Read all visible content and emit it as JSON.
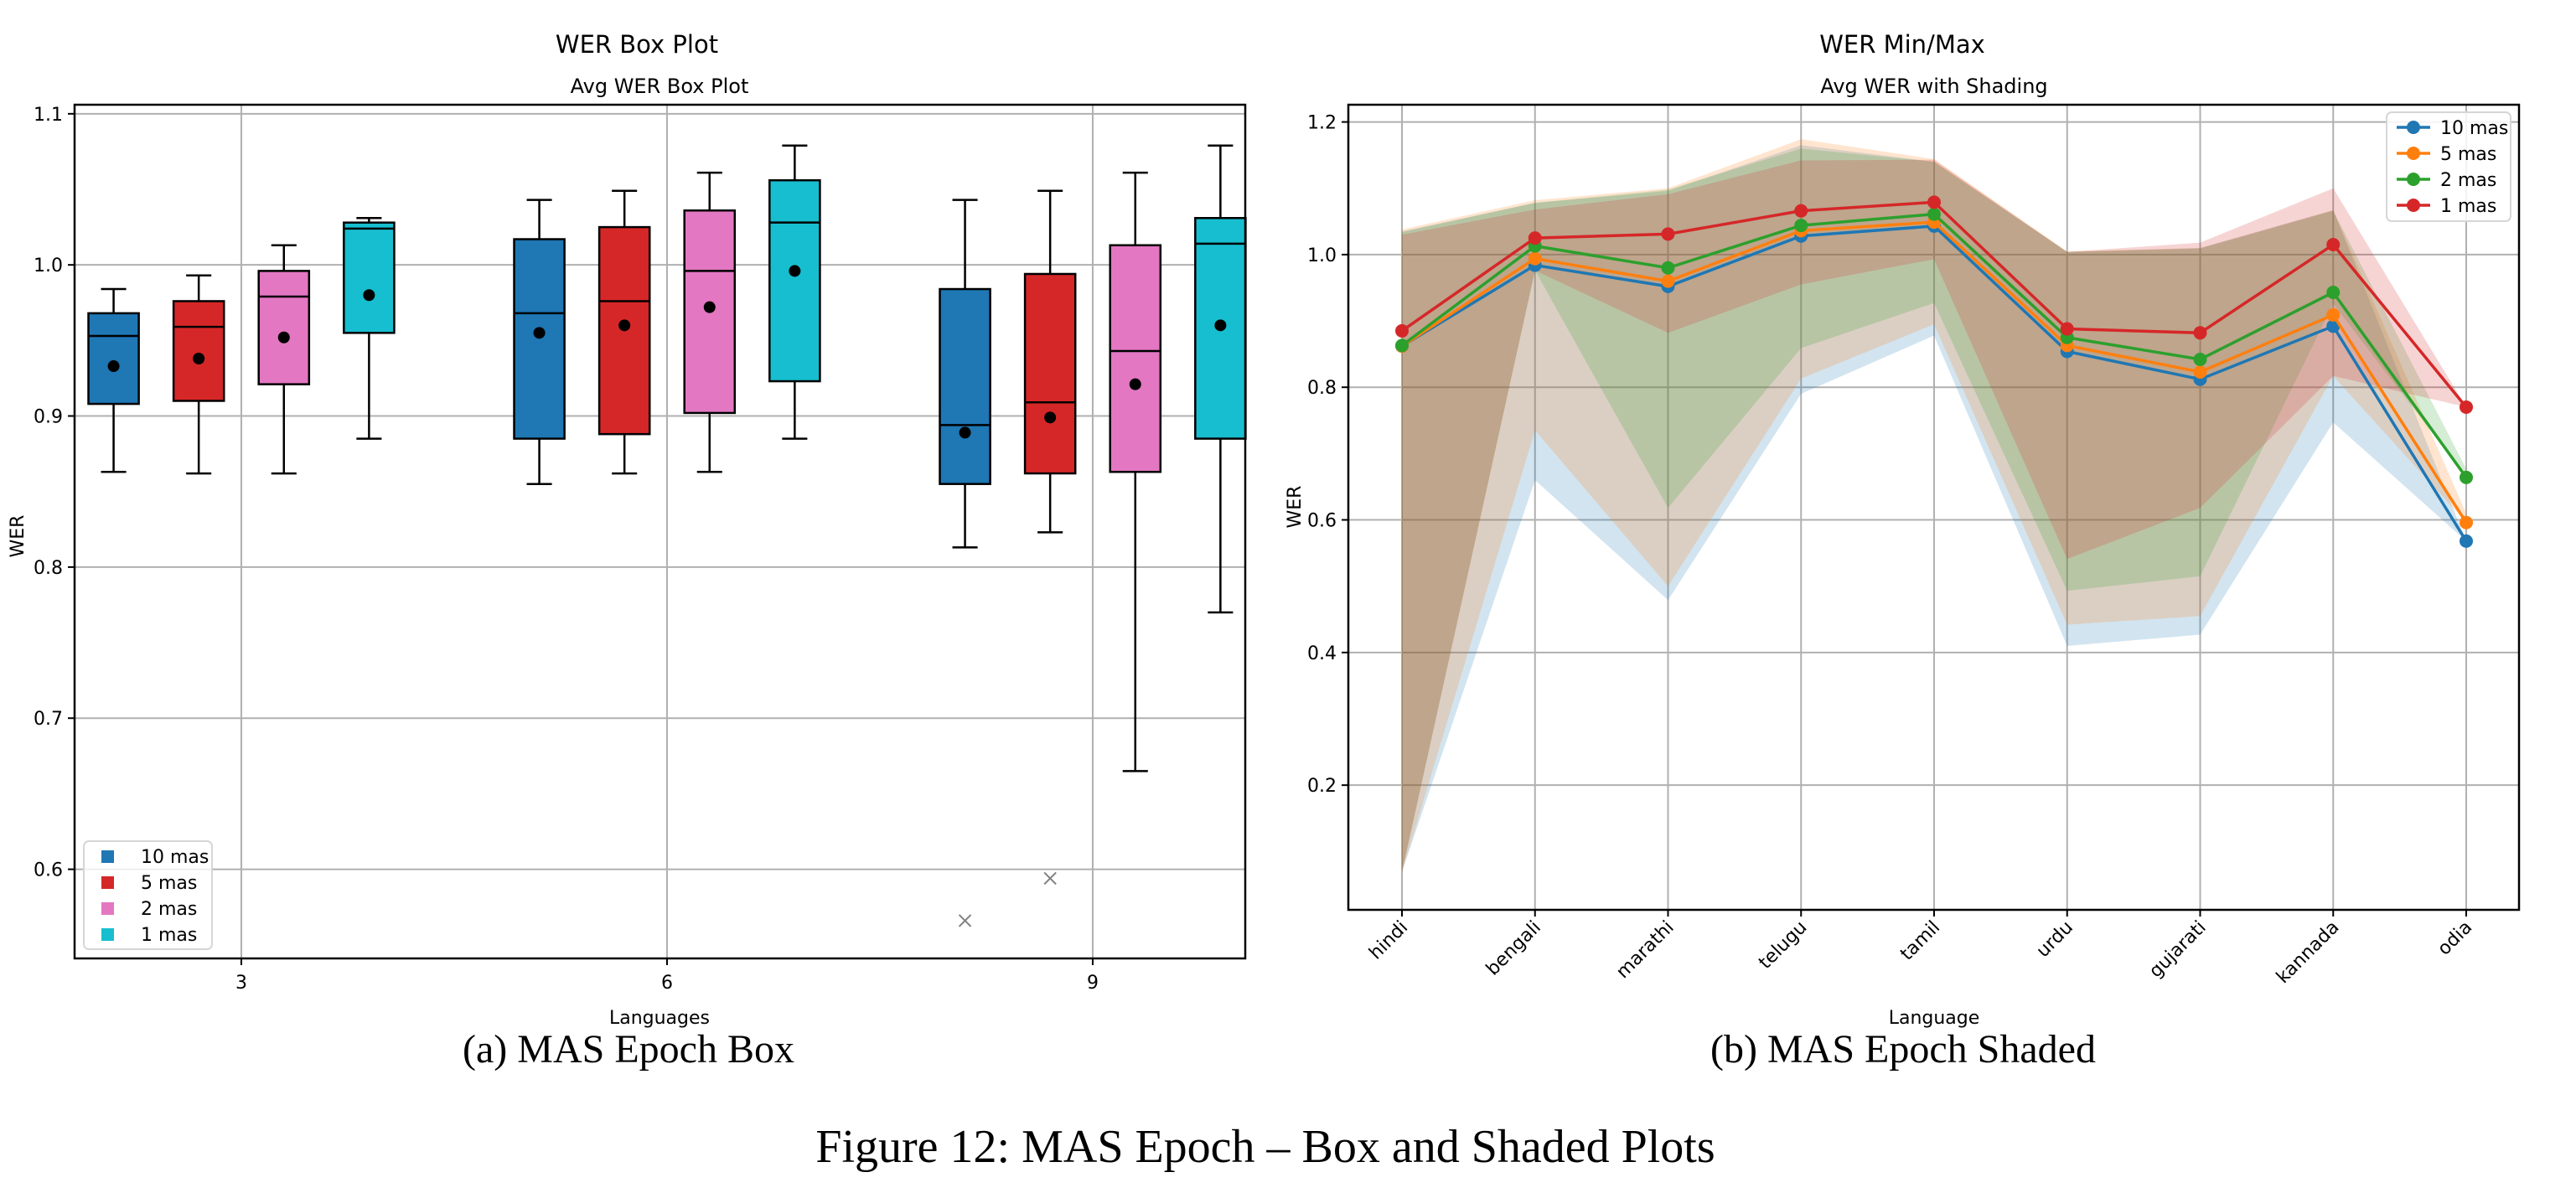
{
  "figure_caption": "Figure 12: MAS Epoch – Box and Shaded Plots",
  "chart_data": [
    {
      "type": "box",
      "suptitle": "WER Box Plot",
      "title": "Avg WER Box Plot",
      "caption": "(a) MAS Epoch Box",
      "xlabel": "Languages",
      "ylabel": "WER",
      "xlim": [
        1.825,
        10.075
      ],
      "ylim": [
        0.541,
        1.106
      ],
      "xticks": [
        3,
        6,
        9
      ],
      "xtick_labels": [
        "3",
        "6",
        "9"
      ],
      "yticks": [
        0.6,
        0.7,
        0.8,
        0.9,
        1.0,
        1.1
      ],
      "ytick_labels": [
        "0.6",
        "0.7",
        "0.8",
        "0.9",
        "1.0",
        "1.1"
      ],
      "grid": true,
      "legend": {
        "placement": "lower-left",
        "entries": [
          "10 mas",
          "5 mas",
          "2 mas",
          "1 mas"
        ]
      },
      "series_colors": [
        "#1f77b4",
        "#d62728",
        "#e377c2",
        "#17becf"
      ],
      "groups": [
        {
          "center": 3,
          "boxes": [
            {
              "series": "10 mas",
              "position": 2.1,
              "whisker_low": 0.863,
              "q1": 0.908,
              "median": 0.953,
              "q3": 0.968,
              "whisker_high": 0.984,
              "mean": 0.933,
              "outliers": []
            },
            {
              "series": "5 mas",
              "position": 2.7,
              "whisker_low": 0.862,
              "q1": 0.91,
              "median": 0.959,
              "q3": 0.976,
              "whisker_high": 0.993,
              "mean": 0.938,
              "outliers": []
            },
            {
              "series": "2 mas",
              "position": 3.3,
              "whisker_low": 0.862,
              "q1": 0.921,
              "median": 0.979,
              "q3": 0.996,
              "whisker_high": 1.013,
              "mean": 0.952,
              "outliers": []
            },
            {
              "series": "1 mas",
              "position": 3.9,
              "whisker_low": 0.885,
              "q1": 0.955,
              "median": 1.024,
              "q3": 1.028,
              "whisker_high": 1.031,
              "mean": 0.98,
              "outliers": []
            }
          ]
        },
        {
          "center": 6,
          "boxes": [
            {
              "series": "10 mas",
              "position": 5.1,
              "whisker_low": 0.855,
              "q1": 0.885,
              "median": 0.968,
              "q3": 1.017,
              "whisker_high": 1.043,
              "mean": 0.955,
              "outliers": []
            },
            {
              "series": "5 mas",
              "position": 5.7,
              "whisker_low": 0.862,
              "q1": 0.888,
              "median": 0.976,
              "q3": 1.025,
              "whisker_high": 1.049,
              "mean": 0.96,
              "outliers": []
            },
            {
              "series": "2 mas",
              "position": 6.3,
              "whisker_low": 0.863,
              "q1": 0.902,
              "median": 0.996,
              "q3": 1.036,
              "whisker_high": 1.061,
              "mean": 0.972,
              "outliers": []
            },
            {
              "series": "1 mas",
              "position": 6.9,
              "whisker_low": 0.885,
              "q1": 0.923,
              "median": 1.028,
              "q3": 1.056,
              "whisker_high": 1.079,
              "mean": 0.996,
              "outliers": []
            }
          ]
        },
        {
          "center": 9,
          "boxes": [
            {
              "series": "10 mas",
              "position": 8.1,
              "whisker_low": 0.813,
              "q1": 0.855,
              "median": 0.894,
              "q3": 0.984,
              "whisker_high": 1.043,
              "mean": 0.889,
              "outliers": [
                0.566
              ]
            },
            {
              "series": "5 mas",
              "position": 8.7,
              "whisker_low": 0.823,
              "q1": 0.862,
              "median": 0.909,
              "q3": 0.994,
              "whisker_high": 1.049,
              "mean": 0.899,
              "outliers": [
                0.594
              ]
            },
            {
              "series": "2 mas",
              "position": 9.3,
              "whisker_low": 0.665,
              "q1": 0.863,
              "median": 0.943,
              "q3": 1.013,
              "whisker_high": 1.061,
              "mean": 0.921,
              "outliers": []
            },
            {
              "series": "1 mas",
              "position": 9.9,
              "whisker_low": 0.77,
              "q1": 0.885,
              "median": 1.014,
              "q3": 1.031,
              "whisker_high": 1.079,
              "mean": 0.96,
              "outliers": []
            }
          ]
        }
      ]
    },
    {
      "type": "line",
      "suptitle": "WER Min/Max",
      "title": "Avg WER with Shading",
      "caption": "(b) MAS Epoch Shaded",
      "xlabel": "Language",
      "ylabel": "WER",
      "categories": [
        "hindi",
        "bengali",
        "marathi",
        "telugu",
        "tamil",
        "urdu",
        "gujarati",
        "kannada",
        "odia"
      ],
      "ylim": [
        0.012,
        1.226
      ],
      "yticks": [
        0.2,
        0.4,
        0.6,
        0.8,
        1.0,
        1.2
      ],
      "ytick_labels": [
        "0.2",
        "0.4",
        "0.6",
        "0.8",
        "1.0",
        "1.2"
      ],
      "grid": true,
      "legend": {
        "placement": "top-right",
        "entries": [
          "10 mas",
          "5 mas",
          "2 mas",
          "1 mas"
        ]
      },
      "series": [
        {
          "name": "10 mas",
          "color": "#1f77b4",
          "values": [
            0.862,
            0.984,
            0.952,
            1.028,
            1.043,
            0.854,
            0.812,
            0.892,
            0.568
          ],
          "min": [
            0.069,
            0.66,
            0.479,
            0.79,
            0.878,
            0.41,
            0.427,
            0.747,
            0.568
          ],
          "max": [
            1.035,
            1.078,
            1.096,
            1.165,
            1.14,
            1.004,
            1.01,
            1.067,
            0.568
          ]
        },
        {
          "name": "5 mas",
          "color": "#ff7f0e",
          "values": [
            0.862,
            0.994,
            0.96,
            1.036,
            1.049,
            0.863,
            0.823,
            0.909,
            0.596
          ],
          "min": [
            0.069,
            0.735,
            0.5,
            0.813,
            0.895,
            0.442,
            0.455,
            0.817,
            0.596
          ],
          "max": [
            1.038,
            1.082,
            1.1,
            1.174,
            1.144,
            1.005,
            1.01,
            1.067,
            0.61
          ]
        },
        {
          "name": "2 mas",
          "color": "#2ca02c",
          "values": [
            0.863,
            1.013,
            0.98,
            1.044,
            1.061,
            0.875,
            0.842,
            0.943,
            0.664
          ],
          "min": [
            0.069,
            0.976,
            0.618,
            0.859,
            0.927,
            0.493,
            0.515,
            0.926,
            0.664
          ],
          "max": [
            1.034,
            1.078,
            1.098,
            1.16,
            1.14,
            1.004,
            1.009,
            1.066,
            0.677
          ]
        },
        {
          "name": "1 mas",
          "color": "#d62728",
          "values": [
            0.885,
            1.025,
            1.031,
            1.066,
            1.079,
            0.888,
            0.882,
            1.015,
            0.77
          ],
          "min": [
            0.069,
            0.976,
            0.882,
            0.955,
            0.993,
            0.541,
            0.618,
            0.817,
            0.77
          ],
          "max": [
            1.03,
            1.068,
            1.091,
            1.142,
            1.143,
            1.004,
            1.018,
            1.1,
            0.77
          ]
        }
      ]
    }
  ]
}
